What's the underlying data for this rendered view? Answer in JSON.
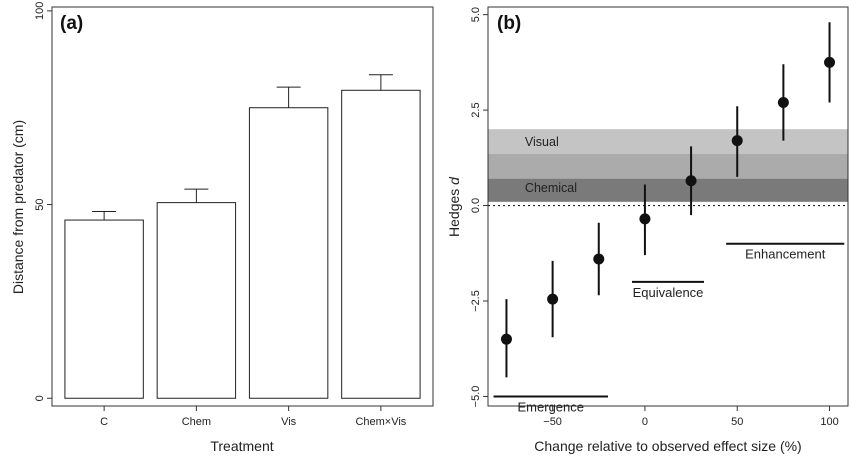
{
  "chart_data": [
    {
      "type": "bar",
      "panel_label": "(a)",
      "title": "",
      "xlabel": "Treatment",
      "ylabel": "Distance from predator (cm)",
      "categories": [
        "C",
        "Chem",
        "Vis",
        "Chem×Vis"
      ],
      "values": [
        46,
        50.5,
        75,
        79.5
      ],
      "error_upper": [
        48.2,
        54,
        80.3,
        83.5
      ],
      "ylim": [
        -2,
        101
      ],
      "yticks": [
        0,
        50,
        100
      ],
      "ytick_labels": [
        "0",
        "50",
        "100"
      ],
      "grid": false,
      "bar_color": "#ffffff"
    },
    {
      "type": "scatter",
      "panel_label": "(b)",
      "title": "",
      "xlabel": "Change relative to observed effect size (%)",
      "ylabel_prefix": "Hedges ",
      "ylabel_italic": "d",
      "xlim": [
        -85,
        110
      ],
      "ylim": [
        -5.25,
        5.2
      ],
      "xticks": [
        -50,
        0,
        50,
        100
      ],
      "xtick_labels": [
        "−50",
        "0",
        "50",
        "100"
      ],
      "yticks": [
        -5,
        -2.5,
        0,
        2.5,
        5
      ],
      "ytick_labels": [
        "−5.0",
        "−2.5",
        "0.0",
        "2.5",
        "5.0"
      ],
      "grid": false,
      "points": {
        "x": [
          -75,
          -50,
          -25,
          0,
          25,
          50,
          75,
          100
        ],
        "y": [
          -3.5,
          -2.45,
          -1.4,
          -0.35,
          0.65,
          1.7,
          2.7,
          3.75
        ],
        "lower": [
          -4.5,
          -3.45,
          -2.35,
          -1.3,
          -0.25,
          0.75,
          1.7,
          2.7
        ],
        "upper": [
          -2.45,
          -1.45,
          -0.45,
          0.55,
          1.55,
          2.6,
          3.7,
          4.8
        ]
      },
      "bands": [
        {
          "label": "Visual",
          "y_range": [
            0.1,
            2.0
          ],
          "color": "#c4c4c4",
          "label_x": -65
        },
        {
          "label": "Chemical",
          "y_range": [
            0.1,
            1.35
          ],
          "color": "#ababab",
          "label_x": -65
        }
      ],
      "dark_band": {
        "y_range": [
          0.1,
          0.7
        ],
        "color": "#7a7a7a"
      },
      "reference_line_y": 0,
      "regions": [
        {
          "label": "Emergence",
          "x_range": [
            -82,
            -20
          ],
          "line_y": -5.0
        },
        {
          "label": "Equivalence",
          "x_range": [
            -7,
            32
          ],
          "line_y": -2.0
        },
        {
          "label": "Enhancement",
          "x_range": [
            44,
            108
          ],
          "line_y": -1.0
        }
      ]
    }
  ]
}
